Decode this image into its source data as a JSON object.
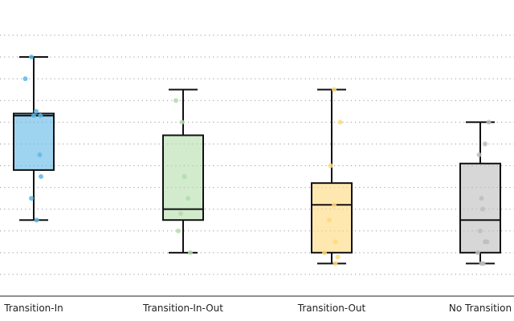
{
  "chart_data": {
    "type": "box",
    "categories": [
      "Transition-In",
      "Transition-In-Out",
      "Transition-Out",
      "No Transition"
    ],
    "ylim": [
      0,
      1.27
    ],
    "gridlines": [
      0.1,
      0.2,
      0.3,
      0.4,
      0.5,
      0.6,
      0.7,
      0.8,
      0.9,
      1.0,
      1.1,
      1.2
    ],
    "grid": true,
    "boxes": [
      {
        "category": "Transition-In",
        "color": "#5DB8E6",
        "whisker_low": 0.35,
        "q1": 0.58,
        "median": 0.83,
        "q3": 0.84,
        "whisker_high": 1.1,
        "points": [
          {
            "x": -0.1,
            "y": 1.1
          },
          {
            "x": -0.35,
            "y": 1.0
          },
          {
            "x": 0.1,
            "y": 0.85
          },
          {
            "x": 0.0,
            "y": 0.83
          },
          {
            "x": 0.28,
            "y": 0.83
          },
          {
            "x": 0.25,
            "y": 0.65
          },
          {
            "x": 0.3,
            "y": 0.55
          },
          {
            "x": -0.1,
            "y": 0.45
          },
          {
            "x": 0.12,
            "y": 0.35
          }
        ]
      },
      {
        "category": "Transition-In-Out",
        "color": "#B2DDAA",
        "whisker_low": 0.2,
        "q1": 0.35,
        "median": 0.4,
        "q3": 0.74,
        "whisker_high": 0.95,
        "points": [
          {
            "x": -0.3,
            "y": 0.9
          },
          {
            "x": -0.05,
            "y": 0.8
          },
          {
            "x": 0.05,
            "y": 0.55
          },
          {
            "x": 0.2,
            "y": 0.45
          },
          {
            "x": -0.1,
            "y": 0.38
          },
          {
            "x": -0.2,
            "y": 0.3
          },
          {
            "x": 0.3,
            "y": 0.2
          }
        ]
      },
      {
        "category": "Transition-Out",
        "color": "#FFD97A",
        "whisker_low": 0.15,
        "q1": 0.2,
        "median": 0.42,
        "q3": 0.52,
        "whisker_high": 0.95,
        "points": [
          {
            "x": 0.1,
            "y": 0.95
          },
          {
            "x": 0.35,
            "y": 0.8
          },
          {
            "x": -0.05,
            "y": 0.6
          },
          {
            "x": 0.1,
            "y": 0.42
          },
          {
            "x": -0.1,
            "y": 0.35
          },
          {
            "x": 0.15,
            "y": 0.25
          },
          {
            "x": -0.3,
            "y": 0.2
          },
          {
            "x": 0.25,
            "y": 0.18
          },
          {
            "x": 0.15,
            "y": 0.15
          }
        ]
      },
      {
        "category": "No Transition",
        "color": "#BDBDBD",
        "whisker_low": 0.15,
        "q1": 0.2,
        "median": 0.35,
        "q3": 0.61,
        "whisker_high": 0.8,
        "points": [
          {
            "x": 0.35,
            "y": 0.8
          },
          {
            "x": 0.2,
            "y": 0.7
          },
          {
            "x": -0.05,
            "y": 0.65
          },
          {
            "x": 0.05,
            "y": 0.45
          },
          {
            "x": 0.1,
            "y": 0.4
          },
          {
            "x": 0.0,
            "y": 0.3
          },
          {
            "x": 0.2,
            "y": 0.25
          },
          {
            "x": 0.28,
            "y": 0.25
          },
          {
            "x": -0.1,
            "y": 0.2
          },
          {
            "x": 0.05,
            "y": 0.15
          },
          {
            "x": 0.12,
            "y": 0.15
          }
        ]
      }
    ]
  }
}
